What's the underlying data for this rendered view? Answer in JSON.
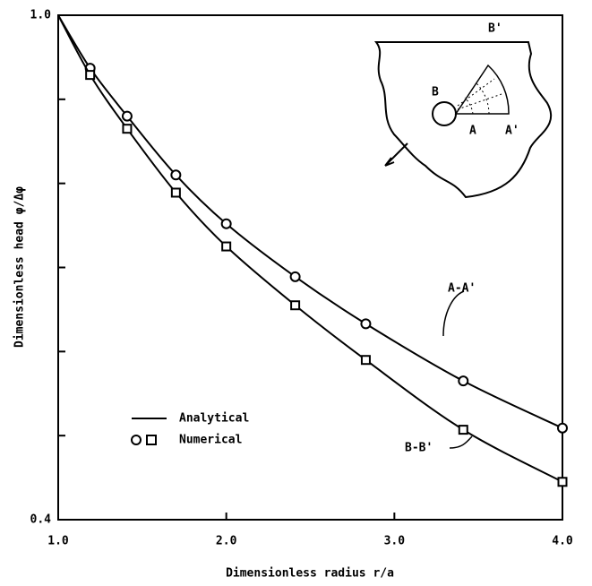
{
  "chart_data": {
    "type": "line",
    "title_y": "Dimensionless head  φ/Δφ",
    "title_x": "Dimensionless radius r/a",
    "x": [
      1.0,
      1.19,
      1.41,
      1.7,
      2.0,
      2.41,
      2.83,
      3.41,
      4.0
    ],
    "series": [
      {
        "name": "A-A'",
        "marker": "circle",
        "color": "#000000",
        "values": [
          1.0,
          0.937,
          0.88,
          0.81,
          0.752,
          0.689,
          0.633,
          0.565,
          0.509
        ],
        "numerical": [
          null,
          0.937,
          0.88,
          0.81,
          0.752,
          0.689,
          0.633,
          0.565,
          0.509
        ]
      },
      {
        "name": "B-B'",
        "marker": "square",
        "color": "#000000",
        "values": [
          1.0,
          0.929,
          0.865,
          0.789,
          0.725,
          0.655,
          0.59,
          0.507,
          0.445
        ],
        "numerical": [
          null,
          0.929,
          0.865,
          0.789,
          0.725,
          0.655,
          0.59,
          0.507,
          0.445
        ]
      }
    ],
    "legend": [
      "Analytical",
      "Numerical"
    ],
    "inset_labels": [
      "B'",
      "B",
      "A",
      "A'"
    ],
    "xlim": [
      1.0,
      4.0
    ],
    "xticks": [
      {
        "value": 1,
        "label": "1.0"
      },
      {
        "value": 2,
        "label": "2.0"
      },
      {
        "value": 3,
        "label": "3.0"
      },
      {
        "value": 4,
        "label": "4.0"
      }
    ],
    "ylim": [
      0.4,
      1.0
    ],
    "yticks": [
      {
        "value": 0.4,
        "label": "0.4"
      },
      {
        "value": 1,
        "label": "1.0"
      }
    ],
    "yminor_ticks": [
      0.5,
      0.6,
      0.7,
      0.8,
      0.9
    ]
  }
}
